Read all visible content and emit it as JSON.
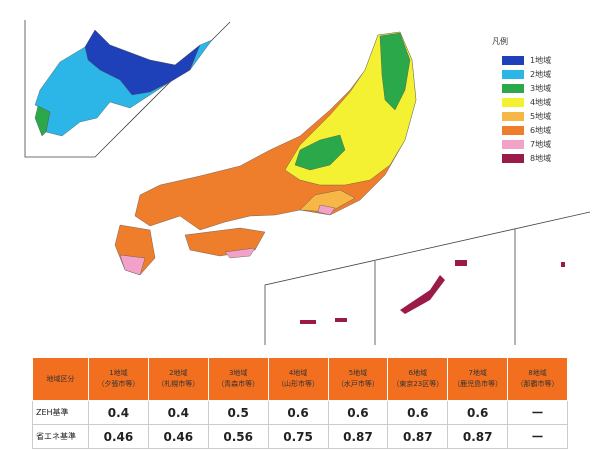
{
  "legend": {
    "title": "凡例",
    "items": [
      {
        "label": "1地域",
        "color": "#1e40b8"
      },
      {
        "label": "2地域",
        "color": "#2cb6e8"
      },
      {
        "label": "3地域",
        "color": "#2aa84a"
      },
      {
        "label": "4地域",
        "color": "#f4f032"
      },
      {
        "label": "5地域",
        "color": "#f6b746"
      },
      {
        "label": "6地域",
        "color": "#ee7d2c"
      },
      {
        "label": "7地域",
        "color": "#f2a2c8"
      },
      {
        "label": "8地域",
        "color": "#9a1a48"
      }
    ]
  },
  "table": {
    "corner": "地域区分",
    "columns": [
      {
        "zone": "1地域",
        "example": "（夕張市等）"
      },
      {
        "zone": "2地域",
        "example": "（札幌市等）"
      },
      {
        "zone": "3地域",
        "example": "（青森市等）"
      },
      {
        "zone": "4地域",
        "example": "（山形市等）"
      },
      {
        "zone": "5地域",
        "example": "（水戸市等）"
      },
      {
        "zone": "6地域",
        "example": "（東京23区等）"
      },
      {
        "zone": "7地域",
        "example": "（鹿児島市等）"
      },
      {
        "zone": "8地域",
        "example": "（那覇市等）"
      }
    ],
    "rows": [
      {
        "label": "ZEH基準",
        "values": [
          0.4,
          0.4,
          0.5,
          0.6,
          0.6,
          0.6,
          0.6,
          "ー"
        ]
      },
      {
        "label": "省エネ基準",
        "values": [
          0.46,
          0.46,
          0.56,
          0.75,
          0.87,
          0.87,
          0.87,
          "ー"
        ]
      }
    ]
  }
}
